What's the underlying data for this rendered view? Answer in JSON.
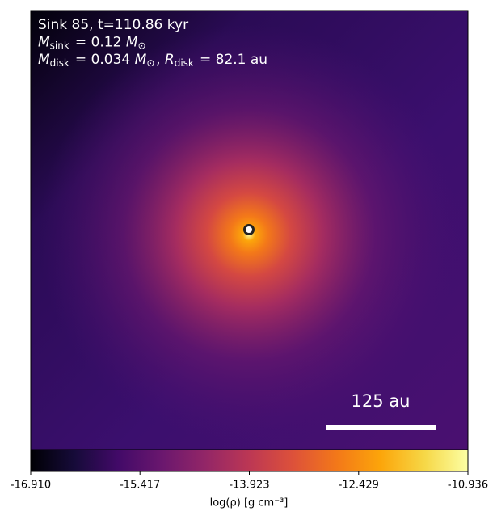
{
  "chart_data": {
    "type": "image",
    "colormap": "inferno",
    "annotations": [
      [
        {
          "text": "Sink 85, t=110.86 kyr"
        }
      ],
      [
        {
          "text": "M",
          "sub": "sink"
        },
        {
          "text": " = 0.12 "
        },
        {
          "text": "M",
          "sub": "⊙"
        }
      ],
      [
        {
          "text": "M",
          "sub": "disk"
        },
        {
          "text": " = 0.034 "
        },
        {
          "text": "M",
          "sub": "⊙"
        },
        {
          "text": ", "
        },
        {
          "text": "R",
          "sub": "disk"
        },
        {
          "text": " = 82.1 au"
        }
      ]
    ],
    "scale_bar_label": "125 au",
    "colorbar": {
      "label": "log(ρ) [g cm⁻³]",
      "lim": [
        -16.91,
        -10.936
      ],
      "ticks": [
        {
          "value": -16.91,
          "label": "-16.910"
        },
        -15.417,
        -13.923,
        -12.429,
        -10.936
      ]
    }
  }
}
